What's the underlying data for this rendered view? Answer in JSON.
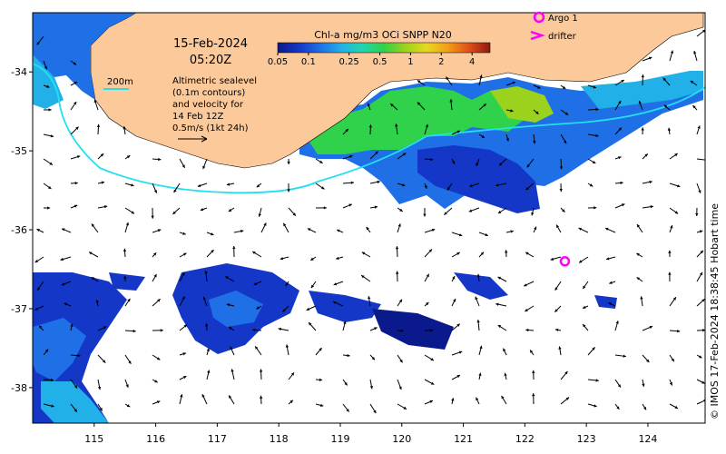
{
  "map": {
    "date": "15-Feb-2024",
    "time": "05:20Z",
    "colorbar": {
      "title": "Chl-a mg/m3 OCi SNPP N20",
      "ticks": [
        "0.05",
        "0.1",
        "0.25",
        "0.5",
        "1",
        "2",
        "4"
      ],
      "colors": [
        "#0a1a8c",
        "#1437c8",
        "#1f6fe6",
        "#22b0e8",
        "#1fd6b0",
        "#2fd24a",
        "#9ad21e",
        "#e8d81e",
        "#f0a018",
        "#e0501a",
        "#8a1a10"
      ]
    },
    "legend": {
      "argo": "Argo 1",
      "drifter": "drifter",
      "contour_200m": "200m",
      "altimetry_lines": [
        "Altimetric sealevel",
        "(0.1m contours)",
        "and velocity for",
        "14 Feb 12Z",
        "0.5m/s (1kt 24h)"
      ]
    },
    "x_axis": {
      "ticks": [
        "115",
        "116",
        "117",
        "118",
        "119",
        "120",
        "121",
        "122",
        "123",
        "124"
      ]
    },
    "y_axis": {
      "ticks": [
        "-34",
        "-35",
        "-36",
        "-37",
        "-38"
      ]
    },
    "credit": "© IMOS 17-Feb-2024 18:38:45 Hobart time",
    "colors": {
      "land": "#fbc99a",
      "contour_200m": "#22e0f0",
      "argo_marker": "#ff00ff",
      "vector": "#000000"
    },
    "argo_float": {
      "lon": 122.65,
      "lat": -36.4
    }
  }
}
